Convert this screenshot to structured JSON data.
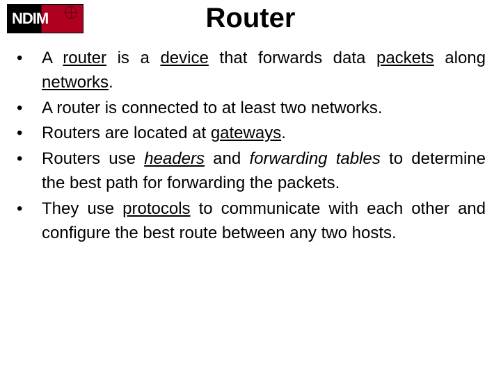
{
  "logo": {
    "text": "NDIM"
  },
  "title": "Router",
  "text_color": "#000000",
  "background_color": "#ffffff",
  "title_fontsize": 40,
  "body_fontsize": 24,
  "bullets": [
    {
      "segments": [
        {
          "t": "A "
        },
        {
          "t": "router",
          "u": true
        },
        {
          "t": " is a "
        },
        {
          "t": "device",
          "u": true
        },
        {
          "t": " that forwards data "
        },
        {
          "t": "packets",
          "u": true
        },
        {
          "t": " along "
        },
        {
          "t": "networks",
          "u": true
        },
        {
          "t": "."
        }
      ]
    },
    {
      "segments": [
        {
          "t": "A router is connected to at least two networks."
        }
      ]
    },
    {
      "segments": [
        {
          "t": "Routers are located at "
        },
        {
          "t": "gateways",
          "u": true
        },
        {
          "t": "."
        }
      ]
    },
    {
      "segments": [
        {
          "t": "Routers use "
        },
        {
          "t": "headers",
          "u": true,
          "i": true
        },
        {
          "t": " and "
        },
        {
          "t": "forwarding tables",
          "i": true
        },
        {
          "t": " to determine the best path for forwarding the packets."
        }
      ]
    },
    {
      "segments": [
        {
          "t": "They use "
        },
        {
          "t": "protocols",
          "u": true
        },
        {
          "t": " to communicate with each other and configure the best route between any two hosts."
        }
      ]
    }
  ]
}
